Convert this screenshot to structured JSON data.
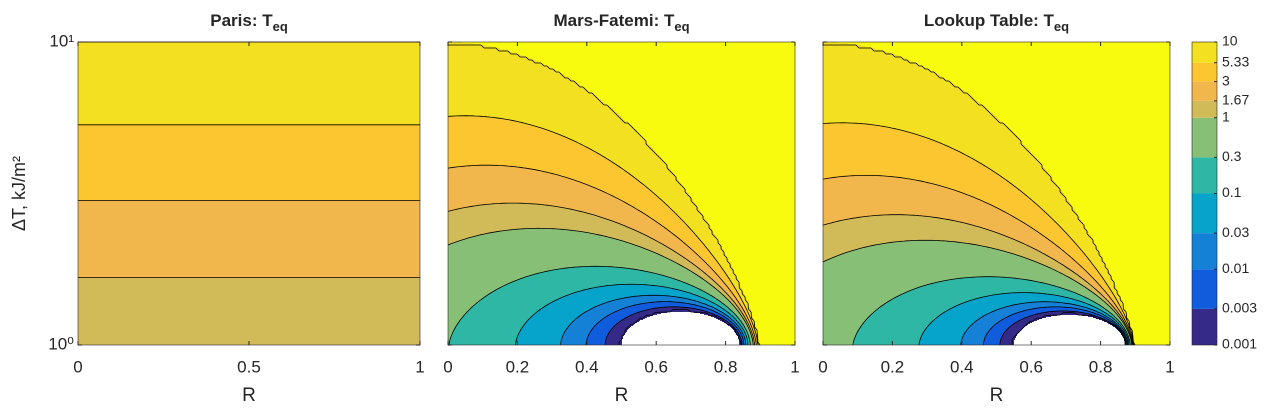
{
  "chart_data": [
    {
      "type": "contourf",
      "title": "Paris: T",
      "title_sub": "eq",
      "xlabel": "R",
      "ylabel": "ΔT, kJ/m²",
      "xlim": [
        0,
        1
      ],
      "xticks": [
        0,
        0.5,
        1
      ],
      "ylim": [
        1,
        10
      ],
      "log_y": true,
      "yticks": [
        {
          "value": 1,
          "label": "10⁰"
        },
        {
          "value": 10,
          "label": "10¹"
        }
      ],
      "show_ytick_labels": true
    },
    {
      "type": "contourf",
      "title": "Mars-Fatemi: T",
      "title_sub": "eq",
      "xlabel": "R",
      "xlim": [
        0,
        1
      ],
      "xticks": [
        0,
        0.2,
        0.4,
        0.6,
        0.8,
        1
      ],
      "ylim": [
        1,
        10
      ],
      "log_y": true,
      "yticks": [
        1,
        10
      ],
      "show_ytick_labels": false
    },
    {
      "type": "contourf",
      "title": "Lookup Table: T",
      "title_sub": "eq",
      "xlabel": "R",
      "xlim": [
        0,
        1
      ],
      "xticks": [
        0,
        0.2,
        0.4,
        0.6,
        0.8,
        1
      ],
      "ylim": [
        1,
        10
      ],
      "log_y": true,
      "yticks": [
        1,
        10
      ],
      "show_ytick_labels": false
    }
  ],
  "colorbar": {
    "levels": [
      0.001,
      0.003,
      0.01,
      0.03,
      0.1,
      0.3,
      1,
      1.67,
      3,
      5.33,
      10
    ],
    "log": true,
    "colors": [
      "#352a87",
      "#0f5cdd",
      "#1481d6",
      "#06a4ca",
      "#2eb7a4",
      "#87bf77",
      "#d1bb59",
      "#f2b74c",
      "#fcc630",
      "#f2e021"
    ],
    "over_color": "#f9fb0e"
  }
}
